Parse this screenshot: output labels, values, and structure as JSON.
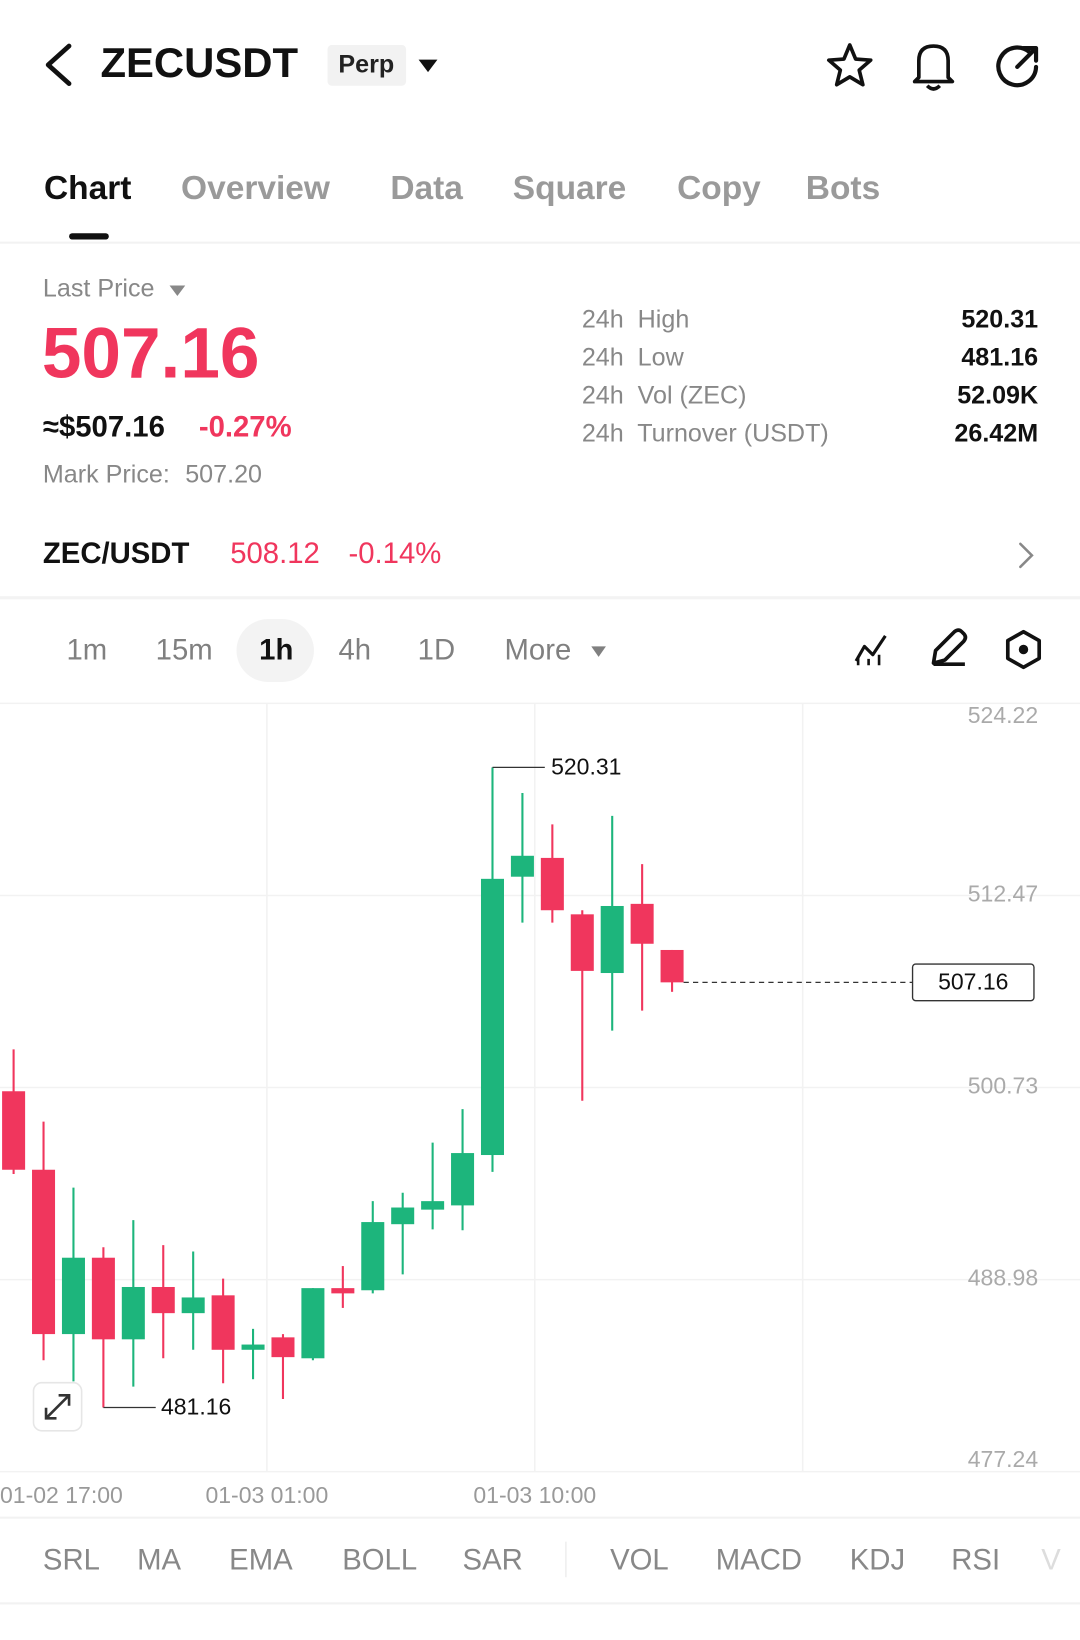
{
  "header": {
    "symbol": "ZECUSDT",
    "badge": "Perp"
  },
  "tabs": [
    "Chart",
    "Overview",
    "Data",
    "Square",
    "Copy",
    "Bots"
  ],
  "price": {
    "label": "Last Price",
    "last": "507.16",
    "usd": "≈$507.16",
    "change": "-0.27%",
    "mark_label": "Mark Price:",
    "mark": "507.20"
  },
  "stats": [
    {
      "label": "24h  High",
      "value": "520.31"
    },
    {
      "label": "24h  Low",
      "value": "481.16"
    },
    {
      "label": "24h  Vol (ZEC)",
      "value": "52.09K"
    },
    {
      "label": "24h  Turnover (USDT)",
      "value": "26.42M"
    }
  ],
  "spot": {
    "pair": "ZEC/USDT",
    "price": "508.12",
    "change": "-0.14%"
  },
  "intervals": [
    "1m",
    "15m",
    "1h",
    "4h",
    "1D",
    "More"
  ],
  "chart_data": {
    "type": "candlestick",
    "up_color": "#1db57c",
    "down_color": "#f0365d",
    "ylim": [
      477.24,
      524.22
    ],
    "yticks": [
      524.22,
      512.47,
      500.73,
      488.98,
      477.24
    ],
    "x_labels": [
      "01-02 17:00",
      "01-03 01:00",
      "01-03 10:00"
    ],
    "candles": [
      {
        "open": 500.5,
        "high": 503.06,
        "low": 495.44,
        "close": 495.7
      },
      {
        "open": 495.7,
        "high": 498.64,
        "low": 484.05,
        "close": 485.65
      },
      {
        "open": 485.65,
        "high": 494.61,
        "low": 482.76,
        "close": 490.32
      },
      {
        "open": 490.32,
        "high": 490.96,
        "low": 481.16,
        "close": 485.33
      },
      {
        "open": 485.33,
        "high": 492.62,
        "low": 482.44,
        "close": 488.53
      },
      {
        "open": 488.53,
        "high": 491.09,
        "low": 484.17,
        "close": 486.93
      },
      {
        "open": 486.93,
        "high": 490.7,
        "low": 484.69,
        "close": 487.89
      },
      {
        "open": 488.02,
        "high": 489.04,
        "low": 482.64,
        "close": 484.69
      },
      {
        "open": 484.69,
        "high": 485.97,
        "low": 482.89,
        "close": 485.01
      },
      {
        "open": 485.45,
        "high": 485.65,
        "low": 481.68,
        "close": 484.24
      },
      {
        "open": 484.17,
        "high": 488.46,
        "low": 484.05,
        "close": 488.46
      },
      {
        "open": 488.46,
        "high": 489.81,
        "low": 487.25,
        "close": 488.14
      },
      {
        "open": 488.33,
        "high": 493.78,
        "low": 488.14,
        "close": 492.5
      },
      {
        "open": 492.37,
        "high": 494.29,
        "low": 489.3,
        "close": 493.39
      },
      {
        "open": 493.26,
        "high": 497.36,
        "low": 492.05,
        "close": 493.78
      },
      {
        "open": 493.52,
        "high": 499.41,
        "low": 492.0,
        "close": 496.72
      },
      {
        "open": 496.6,
        "high": 520.31,
        "low": 495.57,
        "close": 513.49
      },
      {
        "open": 513.62,
        "high": 518.74,
        "low": 510.81,
        "close": 514.9
      },
      {
        "open": 514.77,
        "high": 516.82,
        "low": 510.81,
        "close": 511.57
      },
      {
        "open": 511.32,
        "high": 511.57,
        "low": 499.92,
        "close": 507.86
      },
      {
        "open": 507.73,
        "high": 517.34,
        "low": 504.21,
        "close": 511.83
      },
      {
        "open": 511.96,
        "high": 514.39,
        "low": 505.43,
        "close": 509.52
      },
      {
        "open": 509.14,
        "high": 509.14,
        "low": 506.58,
        "close": 507.16
      }
    ]
  },
  "indicators": [
    "SRL",
    "MA",
    "EMA",
    "BOLL",
    "SAR",
    "VOL",
    "MACD",
    "KDJ",
    "RSI",
    "V"
  ]
}
